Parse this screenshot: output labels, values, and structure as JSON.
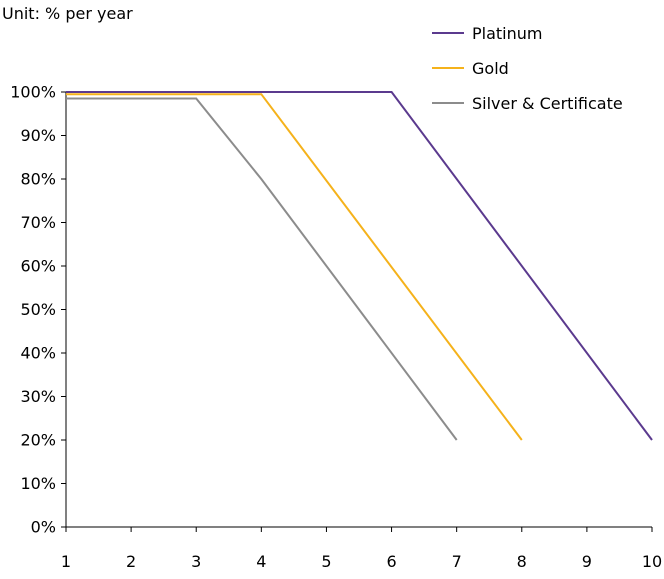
{
  "chart_data": {
    "type": "line",
    "unit_label": "Unit: % per year",
    "x": [
      1,
      2,
      3,
      4,
      5,
      6,
      7,
      8,
      9,
      10
    ],
    "x_tick_labels": [
      "1",
      "2",
      "3",
      "4",
      "5",
      "6",
      "7",
      "8",
      "9",
      "10"
    ],
    "y_tick_values": [
      0,
      10,
      20,
      30,
      40,
      50,
      60,
      70,
      80,
      90,
      100
    ],
    "y_tick_labels": [
      "0%",
      "10%",
      "20%",
      "30%",
      "40%",
      "50%",
      "60%",
      "70%",
      "80%",
      "90%",
      "100%"
    ],
    "xlim": [
      1,
      10
    ],
    "ylim": [
      0,
      100
    ],
    "grid": false,
    "legend_position": "top-right",
    "series": [
      {
        "name": "Platinum",
        "color": "#5B3A8E",
        "points": [
          [
            1,
            100
          ],
          [
            6,
            100
          ],
          [
            10,
            20
          ]
        ]
      },
      {
        "name": "Gold",
        "color": "#F5B21B",
        "points": [
          [
            1,
            99.5
          ],
          [
            4,
            99.5
          ],
          [
            8,
            20
          ]
        ]
      },
      {
        "name": "Silver & Certificate",
        "color": "#8C8C8C",
        "points": [
          [
            1,
            98.5
          ],
          [
            3,
            98.5
          ],
          [
            4,
            80
          ],
          [
            7,
            20
          ]
        ]
      }
    ]
  }
}
